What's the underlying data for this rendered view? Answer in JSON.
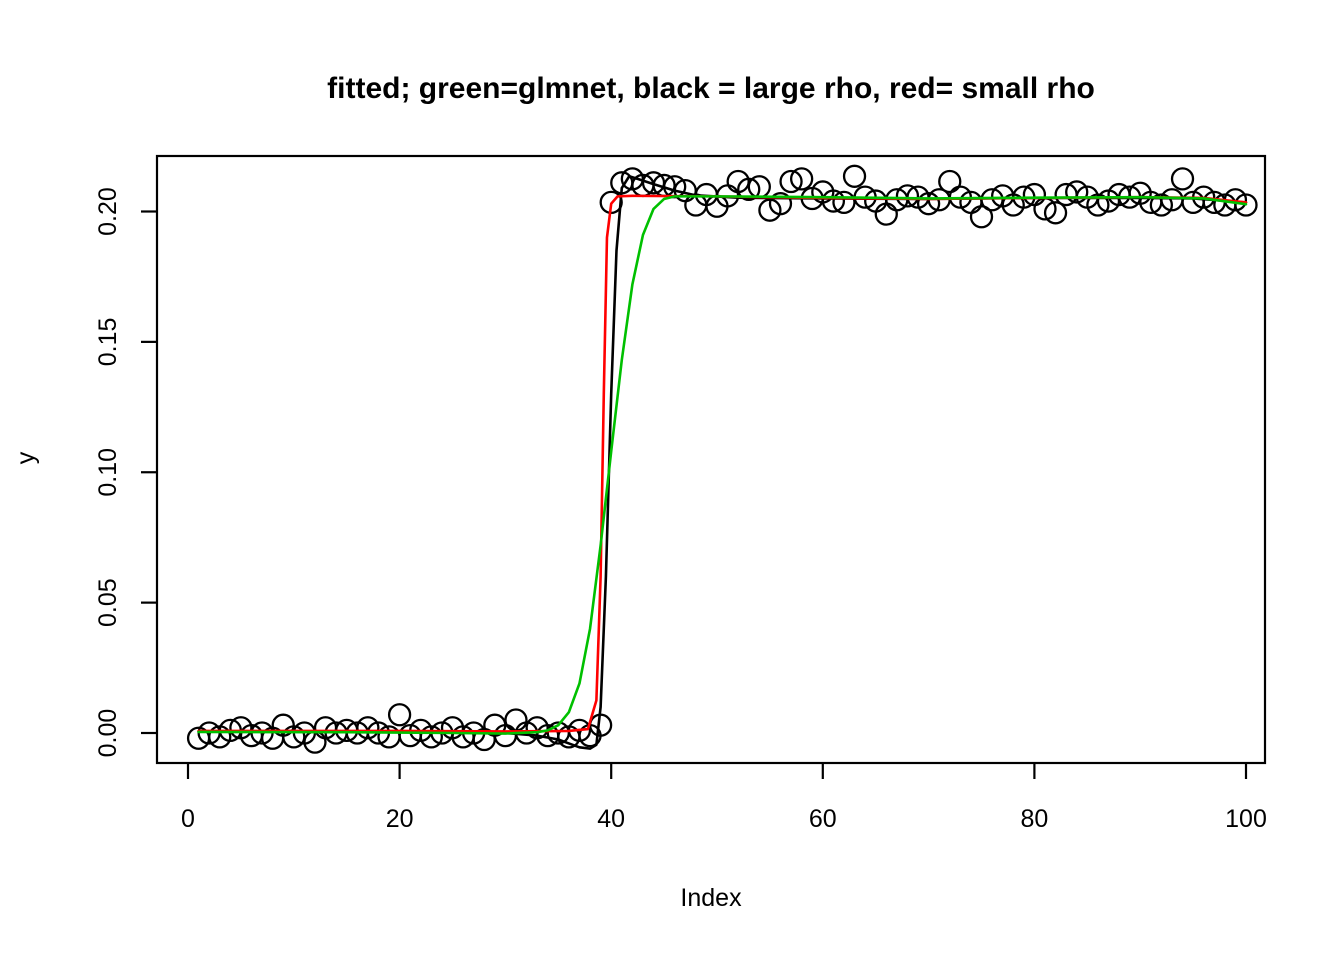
{
  "figure": {
    "background": "#FFFFFF",
    "text_color": "#000000",
    "axis_color": "#000000"
  },
  "chart_data": {
    "type": "scatter",
    "title": "fitted; green=glmnet, black = large rho, red= small rho",
    "xlabel": "Index",
    "ylabel": "y",
    "grid": false,
    "legend_position": "in-title",
    "legend": [
      {
        "color_name": "green",
        "hex": "#00C000",
        "label": "glmnet"
      },
      {
        "color_name": "black",
        "hex": "#000000",
        "label": "large rho"
      },
      {
        "color_name": "red",
        "hex": "#FF0000",
        "label": "small rho"
      }
    ],
    "x_ticks": [
      0,
      20,
      40,
      60,
      80,
      100
    ],
    "y_ticks": [
      "0.00",
      "0.05",
      "0.10",
      "0.15",
      "0.20"
    ],
    "y_tick_values": [
      0,
      0.05,
      0.1,
      0.15,
      0.2
    ],
    "xlim": [
      -3,
      102
    ],
    "ylim": [
      -0.0115,
      0.2213
    ],
    "scatter": {
      "marker": "open-circle",
      "color": "#000000",
      "x_start": 1,
      "x_step": 1,
      "y_values": [
        -0.002,
        0.0,
        -0.0015,
        0.001,
        0.002,
        -0.001,
        0.0,
        -0.002,
        0.003,
        -0.0015,
        0.0,
        -0.0035,
        0.002,
        0.0,
        0.001,
        0.0,
        0.002,
        0.0,
        -0.0015,
        0.007,
        -0.001,
        0.001,
        -0.0015,
        0.0,
        0.002,
        -0.0015,
        0.0,
        -0.0025,
        0.003,
        -0.001,
        0.005,
        0.0,
        0.002,
        -0.001,
        0.0,
        -0.0015,
        0.001,
        -0.001,
        0.003,
        0.2035,
        0.211,
        0.2125,
        0.21,
        0.211,
        0.21,
        0.2095,
        0.208,
        0.2025,
        0.2065,
        0.202,
        0.206,
        0.2115,
        0.2085,
        0.2095,
        0.2005,
        0.203,
        0.2115,
        0.2125,
        0.205,
        0.2075,
        0.204,
        0.2035,
        0.2135,
        0.2055,
        0.204,
        0.199,
        0.2045,
        0.206,
        0.2055,
        0.203,
        0.2045,
        0.2115,
        0.2055,
        0.2035,
        0.198,
        0.2045,
        0.206,
        0.2025,
        0.2055,
        0.2065,
        0.201,
        0.1995,
        0.2065,
        0.2075,
        0.2055,
        0.2025,
        0.204,
        0.2065,
        0.2055,
        0.207,
        0.2035,
        0.2025,
        0.2045,
        0.2125,
        0.2035,
        0.2055,
        0.2035,
        0.2025,
        0.2045,
        0.2025
      ]
    },
    "series": [
      {
        "name": "large rho fit",
        "color": "#000000",
        "points": [
          [
            1,
            0.0005
          ],
          [
            10,
            0.0005
          ],
          [
            20,
            0.0003
          ],
          [
            30,
            0.0
          ],
          [
            33,
            -0.001
          ],
          [
            35,
            -0.0025
          ],
          [
            36,
            -0.004
          ],
          [
            37,
            -0.0055
          ],
          [
            38,
            -0.006
          ],
          [
            38.6,
            -0.0045
          ],
          [
            39,
            0.01
          ],
          [
            39.5,
            0.06
          ],
          [
            40,
            0.13
          ],
          [
            40.5,
            0.185
          ],
          [
            41,
            0.209
          ],
          [
            41.7,
            0.2135
          ],
          [
            42.5,
            0.2125
          ],
          [
            44,
            0.2105
          ],
          [
            46,
            0.208
          ],
          [
            48,
            0.2062
          ],
          [
            52,
            0.2053
          ],
          [
            60,
            0.205
          ],
          [
            70,
            0.2048
          ],
          [
            80,
            0.2052
          ],
          [
            90,
            0.2052
          ],
          [
            95,
            0.205
          ],
          [
            100,
            0.2035
          ]
        ]
      },
      {
        "name": "small rho fit",
        "color": "#FF0000",
        "points": [
          [
            1,
            0.0008
          ],
          [
            20,
            0.0008
          ],
          [
            30,
            0.0006
          ],
          [
            36,
            0.0008
          ],
          [
            37.8,
            0.0015
          ],
          [
            38.6,
            0.0125
          ],
          [
            39.0,
            0.06
          ],
          [
            39.3,
            0.13
          ],
          [
            39.6,
            0.19
          ],
          [
            40.0,
            0.203
          ],
          [
            40.6,
            0.2058
          ],
          [
            42,
            0.206
          ],
          [
            50,
            0.2058
          ],
          [
            60,
            0.2052
          ],
          [
            70,
            0.2048
          ],
          [
            80,
            0.2052
          ],
          [
            90,
            0.2055
          ],
          [
            96,
            0.2052
          ],
          [
            100,
            0.2035
          ]
        ]
      },
      {
        "name": "glmnet fit",
        "color": "#00C000",
        "points": [
          [
            1,
            0.0004
          ],
          [
            15,
            0.0003
          ],
          [
            25,
            0.0
          ],
          [
            30,
            -0.0002
          ],
          [
            33,
            0.0003
          ],
          [
            34,
            0.001
          ],
          [
            35,
            0.003
          ],
          [
            36,
            0.008
          ],
          [
            37,
            0.019
          ],
          [
            38,
            0.04
          ],
          [
            39,
            0.072
          ],
          [
            40,
            0.108
          ],
          [
            41,
            0.143
          ],
          [
            42,
            0.172
          ],
          [
            43,
            0.191
          ],
          [
            44,
            0.201
          ],
          [
            45,
            0.2048
          ],
          [
            46,
            0.2058
          ],
          [
            50,
            0.2058
          ],
          [
            60,
            0.2055
          ],
          [
            70,
            0.205
          ],
          [
            80,
            0.2053
          ],
          [
            90,
            0.2055
          ],
          [
            96,
            0.205
          ],
          [
            100,
            0.2028
          ]
        ]
      }
    ]
  }
}
